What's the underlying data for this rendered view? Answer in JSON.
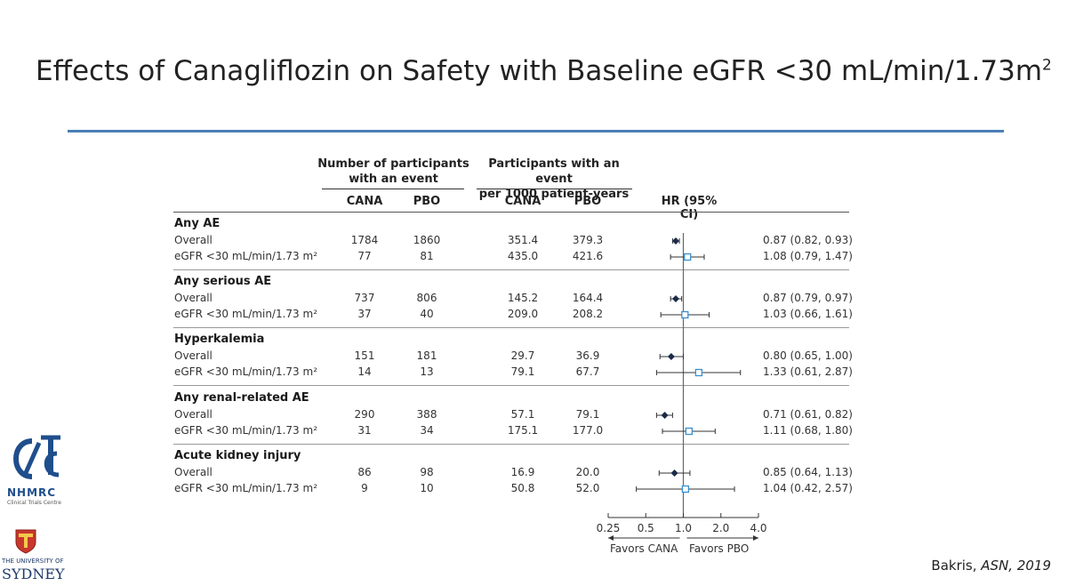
{
  "slide": {
    "title_main": "Effects of Canagliflozin on Safety with Baseline eGFR <30 mL/min/1.73m",
    "title_sup": "2",
    "citation_author": "Bakris, ",
    "citation_source": "ASN, 2019"
  },
  "logos": {
    "nhmrc_name": "NHMRC",
    "nhmrc_sub": "Clinical Trials Centre",
    "usyd_top": "THE UNIVERSITY OF",
    "usyd_name": "SYDNEY"
  },
  "table": {
    "header_participants": [
      "Number of participants",
      "with an event"
    ],
    "header_rate": [
      "Participants with an event",
      "per 1000 patient-years"
    ],
    "col_cana": "CANA",
    "col_pbo": "PBO",
    "col_cana2": "CANA",
    "col_pbo2": "PBO",
    "col_hr": "HR (95% CI)",
    "favors_cana": "Favors CANA",
    "favors_pbo": "Favors PBO"
  },
  "chart_data": {
    "type": "forest",
    "xscale": "log",
    "xlim": [
      0.25,
      4.0
    ],
    "ticks": [
      "0.25",
      "0.5",
      "1.0",
      "2.0",
      "4.0"
    ],
    "tick_values": [
      0.25,
      0.5,
      1.0,
      2.0,
      4.0
    ],
    "reference": 1.0,
    "groups": [
      {
        "name": "Any AE",
        "rows": [
          {
            "label": "Overall",
            "cana_n": "1784",
            "pbo_n": "1860",
            "cana_rate": "351.4",
            "pbo_rate": "379.3",
            "hr": 0.87,
            "lo": 0.82,
            "hi": 0.93,
            "hr_text": "0.87 (0.82, 0.93)",
            "marker": "diamond"
          },
          {
            "label": "eGFR <30 mL/min/1.73 m²",
            "cana_n": "77",
            "pbo_n": "81",
            "cana_rate": "435.0",
            "pbo_rate": "421.6",
            "hr": 1.08,
            "lo": 0.79,
            "hi": 1.47,
            "hr_text": "1.08 (0.79, 1.47)",
            "marker": "square"
          }
        ]
      },
      {
        "name": "Any serious AE",
        "rows": [
          {
            "label": "Overall",
            "cana_n": "737",
            "pbo_n": "806",
            "cana_rate": "145.2",
            "pbo_rate": "164.4",
            "hr": 0.87,
            "lo": 0.79,
            "hi": 0.97,
            "hr_text": "0.87 (0.79, 0.97)",
            "marker": "diamond"
          },
          {
            "label": "eGFR <30 mL/min/1.73 m²",
            "cana_n": "37",
            "pbo_n": "40",
            "cana_rate": "209.0",
            "pbo_rate": "208.2",
            "hr": 1.03,
            "lo": 0.66,
            "hi": 1.61,
            "hr_text": "1.03 (0.66, 1.61)",
            "marker": "square"
          }
        ]
      },
      {
        "name": "Hyperkalemia",
        "rows": [
          {
            "label": "Overall",
            "cana_n": "151",
            "pbo_n": "181",
            "cana_rate": "29.7",
            "pbo_rate": "36.9",
            "hr": 0.8,
            "lo": 0.65,
            "hi": 1.0,
            "hr_text": "0.80 (0.65, 1.00)",
            "marker": "diamond"
          },
          {
            "label": "eGFR <30 mL/min/1.73 m²",
            "cana_n": "14",
            "pbo_n": "13",
            "cana_rate": "79.1",
            "pbo_rate": "67.7",
            "hr": 1.33,
            "lo": 0.61,
            "hi": 2.87,
            "hr_text": "1.33 (0.61, 2.87)",
            "marker": "square"
          }
        ]
      },
      {
        "name": "Any renal-related AE",
        "rows": [
          {
            "label": "Overall",
            "cana_n": "290",
            "pbo_n": "388",
            "cana_rate": "57.1",
            "pbo_rate": "79.1",
            "hr": 0.71,
            "lo": 0.61,
            "hi": 0.82,
            "hr_text": "0.71 (0.61, 0.82)",
            "marker": "diamond"
          },
          {
            "label": "eGFR <30 mL/min/1.73 m²",
            "cana_n": "31",
            "pbo_n": "34",
            "cana_rate": "175.1",
            "pbo_rate": "177.0",
            "hr": 1.11,
            "lo": 0.68,
            "hi": 1.8,
            "hr_text": "1.11 (0.68, 1.80)",
            "marker": "square"
          }
        ]
      },
      {
        "name": "Acute kidney injury",
        "rows": [
          {
            "label": "Overall",
            "cana_n": "86",
            "pbo_n": "98",
            "cana_rate": "16.9",
            "pbo_rate": "20.0",
            "hr": 0.85,
            "lo": 0.64,
            "hi": 1.13,
            "hr_text": "0.85 (0.64, 1.13)",
            "marker": "diamond"
          },
          {
            "label": "eGFR <30 mL/min/1.73 m²",
            "cana_n": "9",
            "pbo_n": "10",
            "cana_rate": "50.8",
            "pbo_rate": "52.0",
            "hr": 1.04,
            "lo": 0.42,
            "hi": 2.57,
            "hr_text": "1.04 (0.42, 2.57)",
            "marker": "square"
          }
        ]
      }
    ]
  },
  "colors": {
    "rule": "#4a7fb5",
    "diamond": "#1c2a4a",
    "square": "#3a8fd0",
    "logo_blue": "#1f4e8c"
  }
}
